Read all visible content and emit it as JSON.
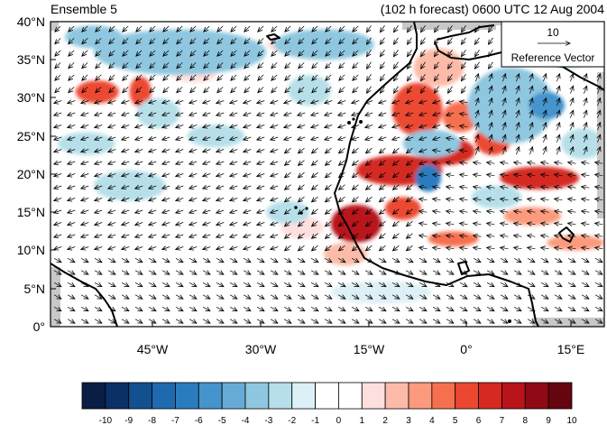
{
  "map": {
    "left_title": "Ensemble 5",
    "right_title": "(102 h forecast) 0600 UTC 12 Aug 2004",
    "lat_labels": [
      "0°",
      "5°N",
      "10°N",
      "15°N",
      "20°N",
      "25°N",
      "30°N",
      "35°N",
      "40°N"
    ],
    "lon_labels": [
      "45°W",
      "30°W",
      "15°W",
      "0°",
      "15°E"
    ],
    "extent": {
      "lon": [
        -58,
        19
      ],
      "lat": [
        0,
        40
      ]
    },
    "reference_vector": {
      "magnitude_label": "10",
      "label": "Reference Vector"
    },
    "anomaly_blobs": [
      {
        "lon": -51.5,
        "lat": 30.8,
        "rlon": 3.0,
        "rlat": 1.5,
        "level": 6
      },
      {
        "lon": -45.5,
        "lat": 30.8,
        "rlon": 1.5,
        "rlat": 2.0,
        "level": 6
      },
      {
        "lon": -15.5,
        "lat": 13.5,
        "rlon": 3.5,
        "rlat": 2.5,
        "level": 8
      },
      {
        "lon": -9.5,
        "lat": 20.5,
        "rlon": 6.0,
        "rlat": 2.0,
        "level": 7
      },
      {
        "lon": -3.0,
        "lat": 23.0,
        "rlon": 4.0,
        "rlat": 1.8,
        "level": 7
      },
      {
        "lon": 3.5,
        "lat": 24.5,
        "rlon": 2.5,
        "rlat": 2.0,
        "level": 6
      },
      {
        "lon": 10.0,
        "lat": 19.5,
        "rlon": 5.5,
        "rlat": 1.5,
        "level": 7
      },
      {
        "lon": -7.0,
        "lat": 28.5,
        "rlon": 3.5,
        "rlat": 3.5,
        "level": 6
      },
      {
        "lon": -1.0,
        "lat": 27.5,
        "rlon": 2.5,
        "rlat": 2.0,
        "level": 5
      },
      {
        "lon": -9.0,
        "lat": 15.5,
        "rlon": 2.5,
        "rlat": 1.5,
        "level": 6
      },
      {
        "lon": -2.0,
        "lat": 11.5,
        "rlon": 3.5,
        "rlat": 1.0,
        "level": 5
      },
      {
        "lon": 15.0,
        "lat": 11.0,
        "rlon": 4.0,
        "rlat": 1.0,
        "level": 4
      },
      {
        "lon": 9.0,
        "lat": 14.5,
        "rlon": 4.0,
        "rlat": 1.2,
        "level": 4
      },
      {
        "lon": -17.0,
        "lat": 9.5,
        "rlon": 3.0,
        "rlat": 1.5,
        "level": 3
      },
      {
        "lon": -23.0,
        "lat": 13.0,
        "rlon": 3.0,
        "rlat": 1.5,
        "level": 2
      },
      {
        "lon": -4.0,
        "lat": 34.0,
        "rlon": 3.5,
        "rlat": 2.5,
        "level": 3
      },
      {
        "lon": 6.0,
        "lat": 32.0,
        "rlon": 2.5,
        "rlat": 1.5,
        "level": 3
      },
      {
        "lon": -38.0,
        "lat": 33.0,
        "rlon": 3.0,
        "rlat": 1.0,
        "level": 2
      },
      {
        "lon": -25.0,
        "lat": 37.0,
        "rlon": 3.0,
        "rlat": 1.0,
        "level": 2
      },
      {
        "lon": -40.0,
        "lat": 36.0,
        "rlon": 12.0,
        "rlat": 3.0,
        "level": -3
      },
      {
        "lon": -52.0,
        "lat": 38.0,
        "rlon": 4.0,
        "rlat": 1.5,
        "level": -3
      },
      {
        "lon": -20.0,
        "lat": 37.0,
        "rlon": 7.0,
        "rlat": 2.0,
        "level": -3
      },
      {
        "lon": -5.0,
        "lat": 24.0,
        "rlon": 4.0,
        "rlat": 1.8,
        "level": -3
      },
      {
        "lon": -5.5,
        "lat": 19.5,
        "rlon": 1.8,
        "rlat": 1.8,
        "level": -6
      },
      {
        "lon": 6.0,
        "lat": 29.0,
        "rlon": 6.0,
        "rlat": 5.0,
        "level": -3
      },
      {
        "lon": 11.0,
        "lat": 29.0,
        "rlon": 2.5,
        "rlat": 1.8,
        "level": -5
      },
      {
        "lon": 14.0,
        "lat": 35.5,
        "rlon": 4.0,
        "rlat": 1.5,
        "level": -3
      },
      {
        "lon": -47.0,
        "lat": 18.5,
        "rlon": 5.0,
        "rlat": 2.0,
        "level": -2
      },
      {
        "lon": -43.0,
        "lat": 28.0,
        "rlon": 3.0,
        "rlat": 2.0,
        "level": -2
      },
      {
        "lon": -53.0,
        "lat": 24.0,
        "rlon": 4.0,
        "rlat": 1.5,
        "level": -2
      },
      {
        "lon": -35.0,
        "lat": 25.0,
        "rlon": 4.0,
        "rlat": 1.5,
        "level": -2
      },
      {
        "lon": -22.0,
        "lat": 31.0,
        "rlon": 3.0,
        "rlat": 2.0,
        "level": -2
      },
      {
        "lon": -25.0,
        "lat": 15.0,
        "rlon": 3.0,
        "rlat": 1.5,
        "level": -2
      },
      {
        "lon": -12.0,
        "lat": 4.5,
        "rlon": 7.0,
        "rlat": 1.5,
        "level": -1
      },
      {
        "lon": 4.0,
        "lat": 17.0,
        "rlon": 3.5,
        "rlat": 1.5,
        "level": -2
      },
      {
        "lon": 16.0,
        "lat": 24.0,
        "rlon": 3.0,
        "rlat": 2.0,
        "level": -2
      }
    ]
  },
  "colorbar": {
    "labels": [
      "-10",
      "-9",
      "-8",
      "-7",
      "-6",
      "-5",
      "-4",
      "-3",
      "-2",
      "-1",
      "0",
      "1",
      "2",
      "3",
      "4",
      "5",
      "6",
      "7",
      "8",
      "9",
      "10"
    ],
    "colors": [
      "#0a1d45",
      "#0b3066",
      "#13508f",
      "#1f6aaf",
      "#2a7cbf",
      "#4594cc",
      "#66abd6",
      "#8ec7df",
      "#b6dfe9",
      "#dcf0f6",
      "#ffffff",
      "#ffffff",
      "#fde0dd",
      "#fcbba8",
      "#fb9a7c",
      "#f6704f",
      "#ec4831",
      "#d42a22",
      "#b8141a",
      "#8f0a14",
      "#650510"
    ]
  }
}
